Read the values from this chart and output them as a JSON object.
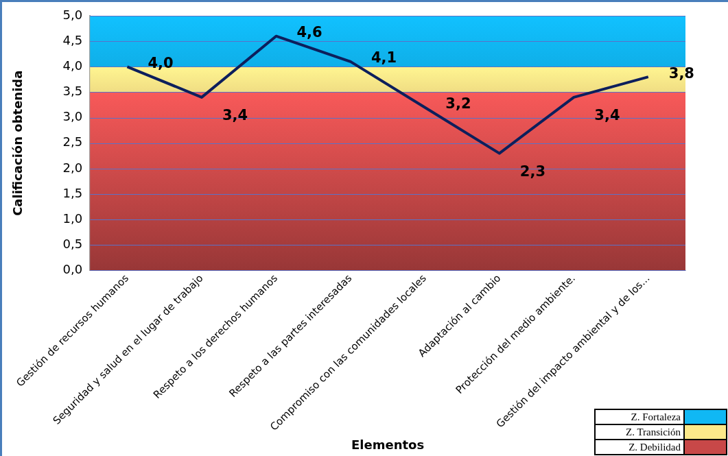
{
  "chart_data": {
    "type": "line",
    "xlabel": "Elementos",
    "ylabel": "Calificación obtenida",
    "categories": [
      "Gestión de recursos humanos",
      "Seguridad y salud en el lugar de trabajo",
      "Respeto a los derechos humanos",
      "Respeto a las partes interesadas",
      "Compromiso con las comunidades locales",
      "Adaptación al cambio",
      "Protección del medio ambiente.",
      "Gestión del impacto ambiental y de los..."
    ],
    "series": [
      {
        "color": "#0d1f5c",
        "values": [
          4.0,
          3.4,
          4.6,
          4.1,
          3.2,
          2.3,
          3.4,
          3.8
        ],
        "value_labels": [
          "4,0",
          "3,4",
          "4,6",
          "4,1",
          "3,2",
          "2,3",
          "3,4",
          "3,8"
        ]
      }
    ],
    "ylim": [
      0,
      5
    ],
    "yticks": [
      {
        "value": 0,
        "label": "0,0"
      },
      {
        "value": 0.5,
        "label": "0,5"
      },
      {
        "value": 1,
        "label": "1,0"
      },
      {
        "value": 1.5,
        "label": "1,5"
      },
      {
        "value": 2,
        "label": "2,0"
      },
      {
        "value": 2.5,
        "label": "2,5"
      },
      {
        "value": 3,
        "label": "3,0"
      },
      {
        "value": 3.5,
        "label": "3,5"
      },
      {
        "value": 4,
        "label": "4,0"
      },
      {
        "value": 4.5,
        "label": "4,5"
      },
      {
        "value": 5,
        "label": "5,0"
      }
    ],
    "bands": [
      {
        "axis": "y",
        "from": 4,
        "to": 5,
        "label": "Z. Fortaleza",
        "color": "#10b8f4"
      },
      {
        "axis": "y",
        "from": 3.5,
        "to": 4,
        "label": "Z. Transición",
        "color": "#fde98a"
      },
      {
        "axis": "y",
        "from": 0,
        "to": 3.5,
        "label": "Z. Debilidad",
        "color": "#c84848"
      }
    ],
    "grid": true,
    "legend": "bottom right",
    "marker": "none",
    "line_style": "solid"
  }
}
